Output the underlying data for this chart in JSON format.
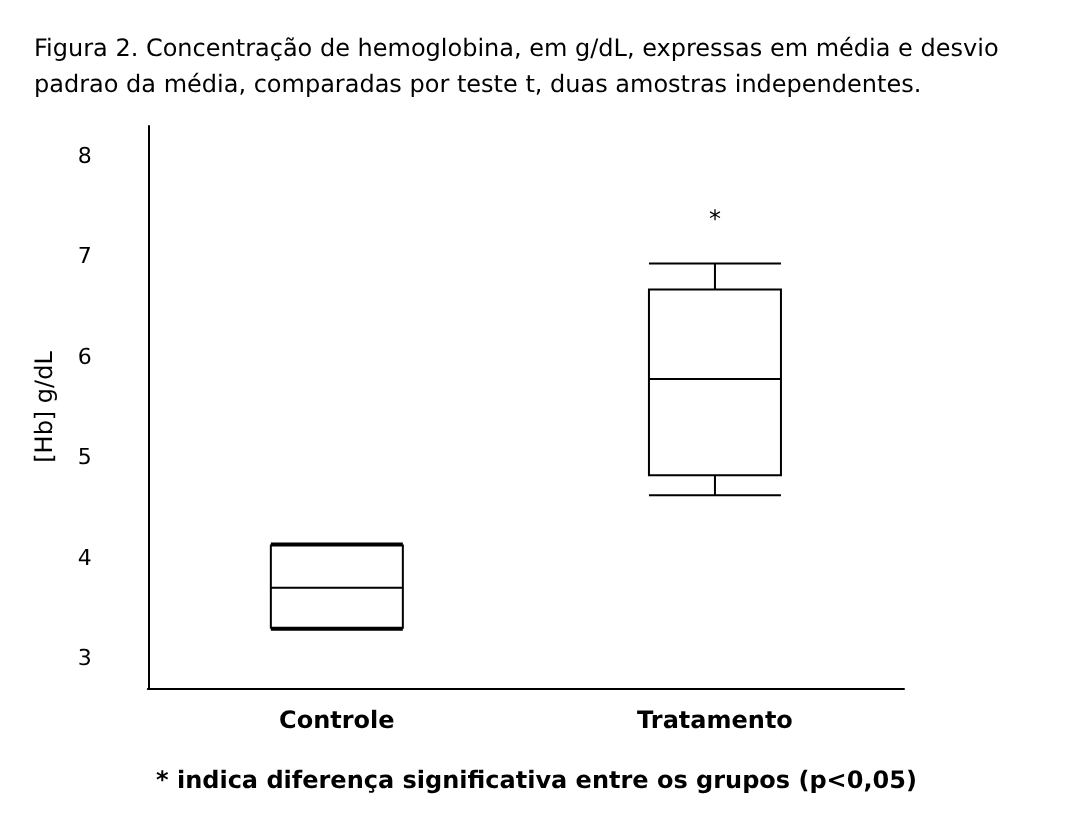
{
  "chart_data": {
    "type": "box",
    "title": "Figura 2. Concentração de hemoglobina, em g/dL, expressas em média e desvio padrao da média, comparadas por teste t, duas amostras independentes.",
    "ylabel": "[Hb] g/dL",
    "categories": [
      "Controle",
      "Tratamento"
    ],
    "boxes": [
      {
        "low": 3.28,
        "q1": 3.3,
        "median": 3.7,
        "q3": 4.12,
        "high": 4.14
      },
      {
        "low": 4.62,
        "q1": 4.82,
        "median": 5.78,
        "q3": 6.67,
        "high": 6.93
      }
    ],
    "color": "#000000",
    "ylim": [
      2.7,
      8.3
    ],
    "yticks": [
      3,
      4,
      5,
      6,
      7,
      8
    ],
    "grid": false,
    "annotations": [
      "*",
      "* indica diferença significativa entre os grupos (p<0,05)"
    ]
  }
}
